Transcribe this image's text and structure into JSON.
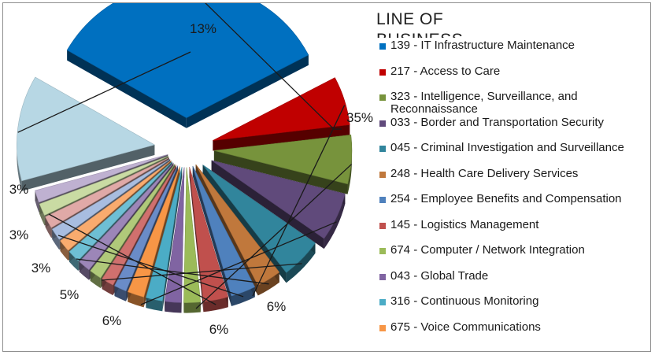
{
  "chart_data": {
    "type": "pie",
    "title": "",
    "legend_title": "LINE OF BUSINESS",
    "legend_position": "right",
    "slices": [
      {
        "label": "139 - IT Infrastructure Maintenance",
        "value": 35,
        "pct_label": "35%",
        "color": "#0070c0"
      },
      {
        "label": "217 - Access to Care",
        "value": 6,
        "pct_label": "6%",
        "color": "#c00000"
      },
      {
        "label": "323 - Intelligence, Surveillance, and Reconnaissance",
        "value": 6,
        "pct_label": "6%",
        "color": "#77933c"
      },
      {
        "label": "033 - Border and Transportation Security",
        "value": 6,
        "pct_label": "6%",
        "color": "#604a7b"
      },
      {
        "label": "045 - Criminal Investigation and Surveillance",
        "value": 5,
        "pct_label": "5%",
        "color": "#31859c"
      },
      {
        "label": "248 - Health Care Delivery Services",
        "value": 3,
        "pct_label": "3%",
        "color": "#c0783c"
      },
      {
        "label": "254 - Employee Benefits and Compensation",
        "value": 3,
        "pct_label": "3%",
        "color": "#4f81bd"
      },
      {
        "label": "145 - Logistics Management",
        "value": 3,
        "pct_label": "3%",
        "color": "#c0504d"
      },
      {
        "label": "674 - Computer / Network Integration",
        "value": 2,
        "pct_label": "",
        "color": "#9bbb59"
      },
      {
        "label": "043 - Global Trade",
        "value": 2,
        "pct_label": "",
        "color": "#8064a2"
      },
      {
        "label": "316 - Continuous Monitoring",
        "value": 2,
        "pct_label": "",
        "color": "#4bacc6"
      },
      {
        "label": "675 - Voice Communications",
        "value": 2,
        "pct_label": "",
        "color": "#f79646"
      },
      {
        "label": "",
        "value": 1.5,
        "pct_label": "",
        "color": "#6a8cc8"
      },
      {
        "label": "",
        "value": 1.5,
        "pct_label": "",
        "color": "#d0706e"
      },
      {
        "label": "",
        "value": 1.5,
        "pct_label": "",
        "color": "#b0c97a"
      },
      {
        "label": "",
        "value": 1.5,
        "pct_label": "",
        "color": "#9c86b8"
      },
      {
        "label": "",
        "value": 1.5,
        "pct_label": "",
        "color": "#6ebfd4"
      },
      {
        "label": "",
        "value": 1.5,
        "pct_label": "",
        "color": "#f9ab6e"
      },
      {
        "label": "",
        "value": 1.5,
        "pct_label": "",
        "color": "#a8bde0"
      },
      {
        "label": "",
        "value": 1.5,
        "pct_label": "",
        "color": "#e0a9a7"
      },
      {
        "label": "",
        "value": 1.5,
        "pct_label": "",
        "color": "#c9dba3"
      },
      {
        "label": "",
        "value": 1.5,
        "pct_label": "",
        "color": "#bfb1d1"
      },
      {
        "label": "",
        "value": 13,
        "pct_label": "13%",
        "color": "#b7d7e4"
      }
    ]
  }
}
